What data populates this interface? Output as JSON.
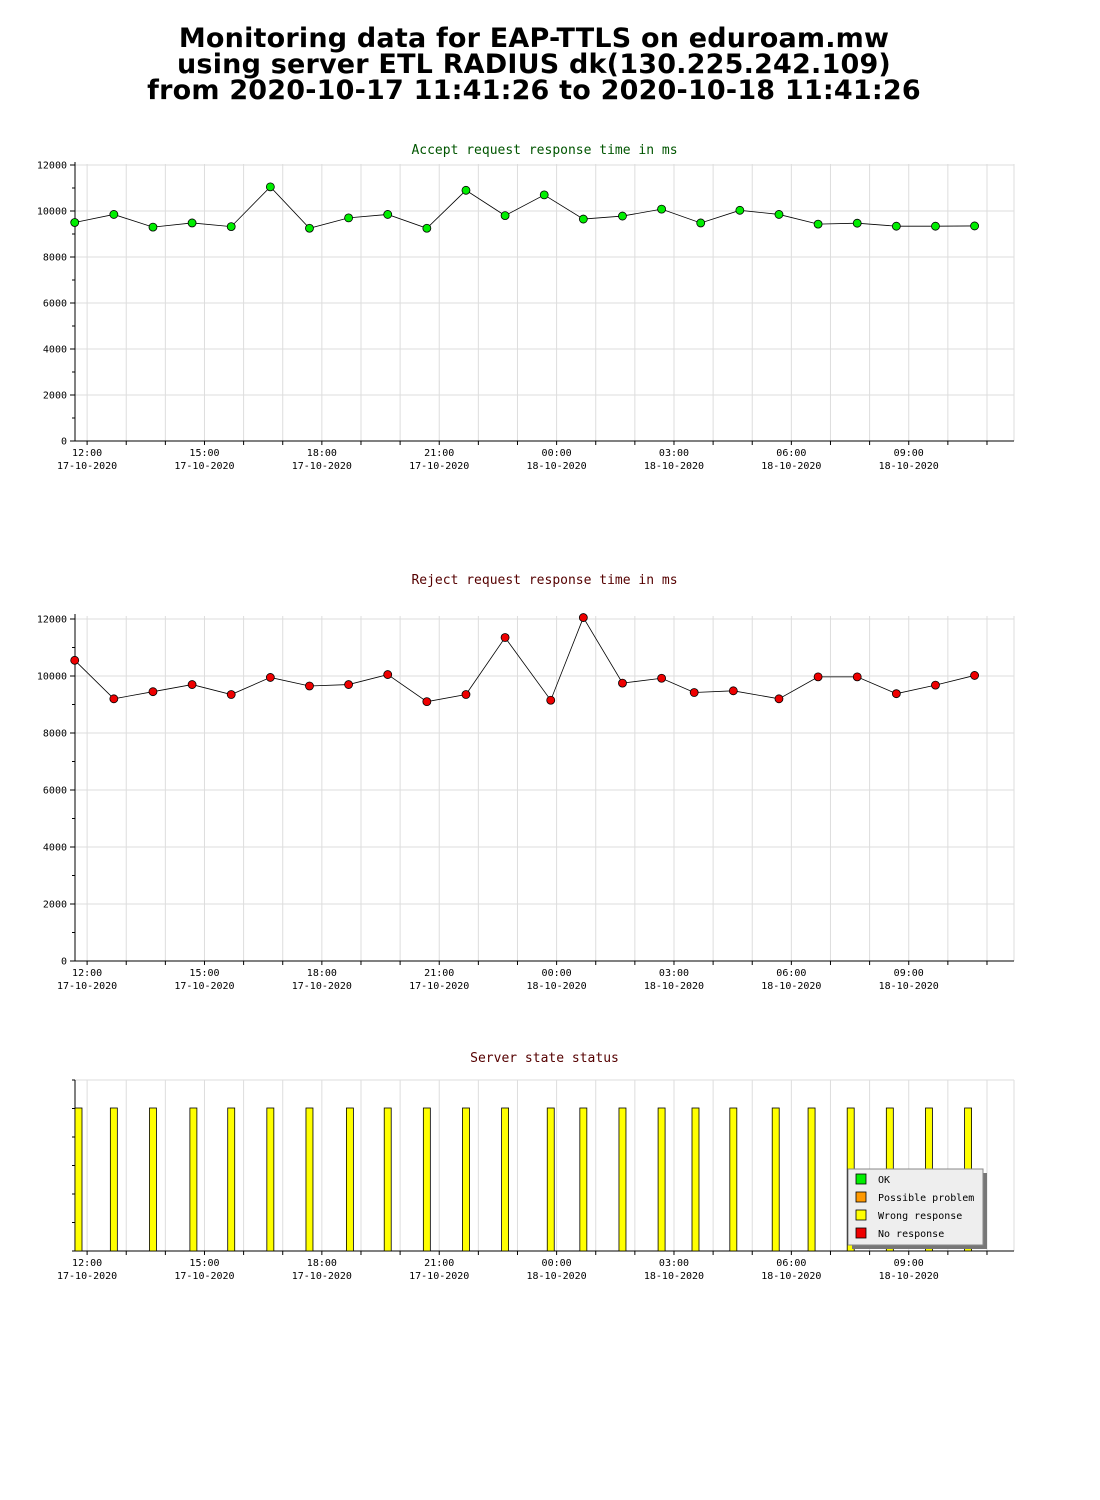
{
  "header": {
    "line1": "Monitoring data for EAP-TTLS on eduroam.mw",
    "line2": "using server ETL RADIUS dk(130.225.242.109)",
    "line3": "from 2020-10-17 11:41:26 to 2020-10-18 11:41:26"
  },
  "colors": {
    "accept_series": "#00ee00",
    "accept_title": "#005500",
    "reject_series": "#ee0000",
    "reject_title": "#550000",
    "status_bar": "#ffff00",
    "grid": "#dddddd"
  },
  "chart_data": [
    {
      "type": "line",
      "title": "Accept request response time in ms",
      "xlabel": "",
      "ylabel": "",
      "ylim": [
        0,
        12000
      ],
      "yticks": [
        0,
        2000,
        4000,
        6000,
        8000,
        10000,
        12000
      ],
      "xlim": [
        "2020-10-17 11:41:26",
        "2020-10-18 11:41:26"
      ],
      "x_tick_labels": [
        {
          "time": "12:00",
          "date": "17-10-2020"
        },
        {
          "time": "15:00",
          "date": "17-10-2020"
        },
        {
          "time": "18:00",
          "date": "17-10-2020"
        },
        {
          "time": "21:00",
          "date": "17-10-2020"
        },
        {
          "time": "00:00",
          "date": "18-10-2020"
        },
        {
          "time": "03:00",
          "date": "18-10-2020"
        },
        {
          "time": "06:00",
          "date": "18-10-2020"
        },
        {
          "time": "09:00",
          "date": "18-10-2020"
        }
      ],
      "grid": true,
      "series": [
        {
          "x": [
            "2020-10-17 11:41",
            "2020-10-17 12:41",
            "2020-10-17 13:41",
            "2020-10-17 14:41",
            "2020-10-17 15:41",
            "2020-10-17 16:41",
            "2020-10-17 17:41",
            "2020-10-17 18:41",
            "2020-10-17 19:41",
            "2020-10-17 20:41",
            "2020-10-17 21:41",
            "2020-10-17 22:41",
            "2020-10-17 23:41",
            "2020-10-18 00:41",
            "2020-10-18 01:41",
            "2020-10-18 02:41",
            "2020-10-18 03:41",
            "2020-10-18 04:41",
            "2020-10-18 05:41",
            "2020-10-18 06:41",
            "2020-10-18 07:41",
            "2020-10-18 08:41",
            "2020-10-18 09:41",
            "2020-10-18 10:41"
          ],
          "values": [
            9500,
            9850,
            9300,
            9480,
            9320,
            11050,
            9250,
            9700,
            9850,
            9250,
            10900,
            9800,
            10700,
            9650,
            9780,
            10080,
            9480,
            10030,
            9850,
            9430,
            9470,
            9340,
            9340,
            9350
          ]
        }
      ]
    },
    {
      "type": "line",
      "title": "Reject request response time in ms",
      "xlabel": "",
      "ylabel": "",
      "ylim": [
        0,
        12000
      ],
      "yticks": [
        0,
        2000,
        4000,
        6000,
        8000,
        10000,
        12000
      ],
      "xlim": [
        "2020-10-17 11:41:26",
        "2020-10-18 11:41:26"
      ],
      "x_tick_labels": [
        {
          "time": "12:00",
          "date": "17-10-2020"
        },
        {
          "time": "15:00",
          "date": "17-10-2020"
        },
        {
          "time": "18:00",
          "date": "17-10-2020"
        },
        {
          "time": "21:00",
          "date": "17-10-2020"
        },
        {
          "time": "00:00",
          "date": "18-10-2020"
        },
        {
          "time": "03:00",
          "date": "18-10-2020"
        },
        {
          "time": "06:00",
          "date": "18-10-2020"
        },
        {
          "time": "09:00",
          "date": "18-10-2020"
        }
      ],
      "grid": true,
      "series": [
        {
          "x": [
            "2020-10-17 11:41",
            "2020-10-17 12:41",
            "2020-10-17 13:41",
            "2020-10-17 14:41",
            "2020-10-17 15:41",
            "2020-10-17 16:41",
            "2020-10-17 17:41",
            "2020-10-17 18:41",
            "2020-10-17 19:41",
            "2020-10-17 20:41",
            "2020-10-17 21:41",
            "2020-10-17 22:41",
            "2020-10-17 23:51",
            "2020-10-18 00:41",
            "2020-10-18 01:41",
            "2020-10-18 02:41",
            "2020-10-18 03:31",
            "2020-10-18 04:31",
            "2020-10-18 05:41",
            "2020-10-18 06:41",
            "2020-10-18 07:41",
            "2020-10-18 08:41",
            "2020-10-18 09:41",
            "2020-10-18 10:41"
          ],
          "values": [
            10550,
            9200,
            9450,
            9700,
            9350,
            9950,
            9650,
            9700,
            10050,
            9100,
            9350,
            11350,
            9150,
            12050,
            9750,
            9920,
            9420,
            9480,
            9200,
            9970,
            9970,
            9380,
            9680,
            10020
          ]
        }
      ]
    },
    {
      "type": "bar",
      "title": "Server state status",
      "xlabel": "",
      "ylabel": "",
      "xlim": [
        "2020-10-17 11:41:26",
        "2020-10-18 11:41:26"
      ],
      "x_tick_labels": [
        {
          "time": "12:00",
          "date": "17-10-2020"
        },
        {
          "time": "15:00",
          "date": "17-10-2020"
        },
        {
          "time": "18:00",
          "date": "17-10-2020"
        },
        {
          "time": "21:00",
          "date": "17-10-2020"
        },
        {
          "time": "00:00",
          "date": "18-10-2020"
        },
        {
          "time": "03:00",
          "date": "18-10-2020"
        },
        {
          "time": "06:00",
          "date": "18-10-2020"
        },
        {
          "time": "09:00",
          "date": "18-10-2020"
        }
      ],
      "legend_position": "bottom-right",
      "legend": [
        {
          "label": "OK",
          "color": "#00ee00"
        },
        {
          "label": "Possible problem",
          "color": "#ff9900"
        },
        {
          "label": "Wrong response",
          "color": "#ffff00"
        },
        {
          "label": "No response",
          "color": "#ee0000"
        }
      ],
      "series": [
        {
          "name": "Wrong response",
          "x": [
            "2020-10-17 11:41",
            "2020-10-17 12:41",
            "2020-10-17 13:41",
            "2020-10-17 14:43",
            "2020-10-17 15:41",
            "2020-10-17 16:41",
            "2020-10-17 17:41",
            "2020-10-17 18:43",
            "2020-10-17 19:41",
            "2020-10-17 20:41",
            "2020-10-17 21:41",
            "2020-10-17 22:41",
            "2020-10-17 23:51",
            "2020-10-18 00:41",
            "2020-10-18 01:41",
            "2020-10-18 02:41",
            "2020-10-18 03:33",
            "2020-10-18 04:31",
            "2020-10-18 05:36",
            "2020-10-18 06:31",
            "2020-10-18 07:31",
            "2020-10-18 08:31",
            "2020-10-18 09:31",
            "2020-10-18 10:31"
          ],
          "values": [
            1,
            1,
            1,
            1,
            1,
            1,
            1,
            1,
            1,
            1,
            1,
            1,
            1,
            1,
            1,
            1,
            1,
            1,
            1,
            1,
            1,
            1,
            1,
            1
          ]
        }
      ]
    }
  ]
}
